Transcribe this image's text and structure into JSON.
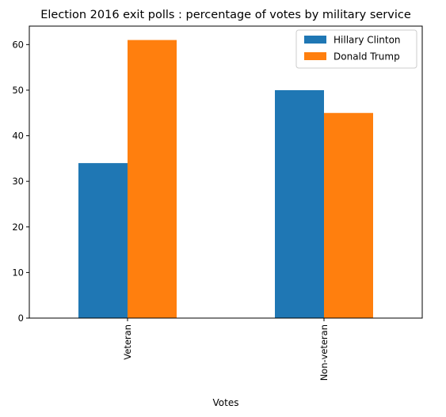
{
  "chart_data": {
    "type": "bar",
    "title": "Election 2016 exit polls : percentage of votes by military service",
    "xlabel": "Votes",
    "ylabel": "",
    "categories": [
      "Veteran",
      "Non-veteran"
    ],
    "series": [
      {
        "name": "Hillary Clinton",
        "values": [
          34,
          50
        ],
        "color": "#1f77b4"
      },
      {
        "name": "Donald Trump",
        "values": [
          61,
          45
        ],
        "color": "#ff7f0e"
      }
    ],
    "ylim": [
      0,
      64.05
    ],
    "yticks": [
      0,
      10,
      20,
      30,
      40,
      50,
      60
    ],
    "grid": false,
    "legend_position": "top-right"
  }
}
